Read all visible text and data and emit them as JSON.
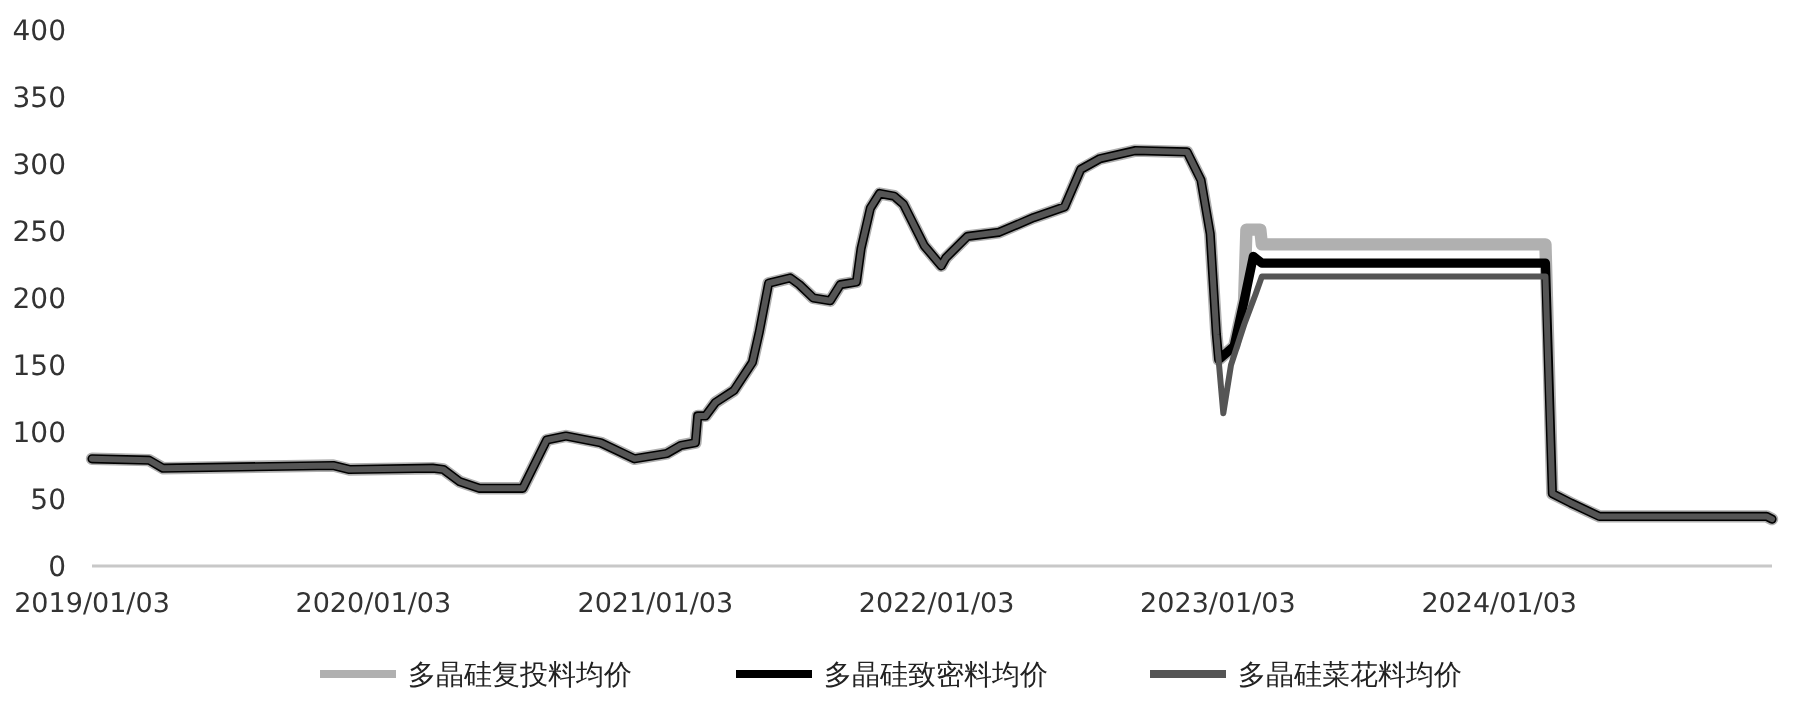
{
  "chart_data": {
    "type": "line",
    "xlim": [
      "2019-01-03",
      "2024-12-22"
    ],
    "xticks": [
      {
        "value": "2019-01-03",
        "label": "2019/01/03"
      },
      {
        "value": "2020-01-03",
        "label": "2020/01/03"
      },
      {
        "value": "2021-01-03",
        "label": "2021/01/03"
      },
      {
        "value": "2022-01-03",
        "label": "2022/01/03"
      },
      {
        "value": "2023-01-03",
        "label": "2023/01/03"
      },
      {
        "value": "2024-01-03",
        "label": "2024/01/03"
      }
    ],
    "ylim": [
      0,
      400
    ],
    "yticks": [
      0,
      50,
      100,
      150,
      200,
      250,
      300,
      350,
      400
    ],
    "grid": false,
    "legend": "bottom",
    "marker": "none",
    "line_style": "solid",
    "series": [
      {
        "name": "多晶硅复投料均价",
        "color": "#b0b0b0",
        "x": [
          "2019-01-03",
          "2019-03-18",
          "2019-04-05",
          "2019-11-12",
          "2019-12-03",
          "2020-03-20",
          "2020-04-03",
          "2020-04-24",
          "2020-05-20",
          "2020-07-15",
          "2020-08-15",
          "2020-09-09",
          "2020-10-24",
          "2020-12-07",
          "2021-01-18",
          "2021-02-05",
          "2021-02-24",
          "2021-02-27",
          "2021-03-09",
          "2021-03-22",
          "2021-04-15",
          "2021-05-09",
          "2021-05-18",
          "2021-05-30",
          "2021-06-27",
          "2021-07-09",
          "2021-07-27",
          "2021-08-18",
          "2021-08-31",
          "2021-09-21",
          "2021-09-27",
          "2021-10-09",
          "2021-10-21",
          "2021-11-09",
          "2021-11-21",
          "2021-12-18",
          "2022-01-09",
          "2022-01-15",
          "2022-02-12",
          "2022-03-25",
          "2022-05-09",
          "2022-06-18",
          "2022-07-09",
          "2022-08-03",
          "2022-09-18",
          "2022-11-24",
          "2022-12-12",
          "2022-12-24",
          "2023-01-01",
          "2023-01-04",
          "2023-01-24",
          "2023-02-06",
          "2023-02-09",
          "2023-02-27",
          "2023-03-01",
          "2024-03-03",
          "2024-03-12",
          "2024-04-05",
          "2024-05-12",
          "2024-12-15",
          "2024-12-22"
        ],
        "values": [
          80,
          79,
          73,
          75,
          72,
          73,
          72,
          63,
          58,
          58,
          94,
          97,
          92,
          80,
          84,
          90,
          92,
          112,
          112,
          122,
          131,
          152,
          175,
          211,
          215,
          210,
          200,
          198,
          210,
          212,
          237,
          267,
          278,
          276,
          270,
          239,
          224,
          230,
          246,
          249,
          260,
          268,
          296,
          304,
          310,
          309,
          288,
          248,
          173,
          154,
          164,
          198,
          251,
          251,
          240,
          240,
          54,
          47,
          37,
          37,
          35
        ]
      },
      {
        "name": "多晶硅致密料均价",
        "color": "#000000",
        "x": [
          "2019-01-03",
          "2019-03-18",
          "2019-04-05",
          "2019-11-12",
          "2019-12-03",
          "2020-03-20",
          "2020-04-03",
          "2020-04-24",
          "2020-05-20",
          "2020-07-15",
          "2020-08-15",
          "2020-09-09",
          "2020-10-24",
          "2020-12-07",
          "2021-01-18",
          "2021-02-05",
          "2021-02-24",
          "2021-02-27",
          "2021-03-09",
          "2021-03-22",
          "2021-04-15",
          "2021-05-09",
          "2021-05-18",
          "2021-05-30",
          "2021-06-27",
          "2021-07-09",
          "2021-07-27",
          "2021-08-18",
          "2021-08-31",
          "2021-09-21",
          "2021-09-27",
          "2021-10-09",
          "2021-10-21",
          "2021-11-09",
          "2021-11-21",
          "2021-12-18",
          "2022-01-09",
          "2022-01-15",
          "2022-02-12",
          "2022-03-25",
          "2022-05-09",
          "2022-06-18",
          "2022-07-09",
          "2022-08-03",
          "2022-09-18",
          "2022-11-24",
          "2022-12-12",
          "2022-12-24",
          "2023-01-01",
          "2023-01-04",
          "2023-01-24",
          "2023-02-06",
          "2023-02-18",
          "2023-03-01",
          "2024-03-03",
          "2024-03-12",
          "2024-04-05",
          "2024-05-12",
          "2024-12-15",
          "2024-12-22"
        ],
        "values": [
          80,
          79,
          73,
          75,
          72,
          73,
          72,
          63,
          58,
          58,
          94,
          97,
          92,
          80,
          84,
          90,
          92,
          112,
          112,
          122,
          131,
          152,
          175,
          211,
          215,
          210,
          200,
          198,
          210,
          212,
          237,
          267,
          278,
          276,
          270,
          239,
          224,
          230,
          246,
          249,
          260,
          268,
          296,
          304,
          310,
          309,
          288,
          248,
          173,
          154,
          164,
          198,
          231,
          226,
          226,
          54,
          47,
          37,
          37,
          35
        ]
      },
      {
        "name": "多晶硅菜花料均价",
        "color": "#555555",
        "x": [
          "2019-01-03",
          "2019-03-18",
          "2019-04-05",
          "2019-11-12",
          "2019-12-03",
          "2020-03-20",
          "2020-04-03",
          "2020-04-24",
          "2020-05-20",
          "2020-07-15",
          "2020-08-15",
          "2020-09-09",
          "2020-10-24",
          "2020-12-07",
          "2021-01-18",
          "2021-02-05",
          "2021-02-24",
          "2021-02-27",
          "2021-03-09",
          "2021-03-22",
          "2021-04-15",
          "2021-05-09",
          "2021-05-18",
          "2021-05-30",
          "2021-06-27",
          "2021-07-09",
          "2021-07-27",
          "2021-08-18",
          "2021-08-31",
          "2021-09-21",
          "2021-09-27",
          "2021-10-09",
          "2021-10-21",
          "2021-11-09",
          "2021-11-21",
          "2021-12-18",
          "2022-01-09",
          "2022-01-15",
          "2022-02-12",
          "2022-03-25",
          "2022-05-09",
          "2022-06-18",
          "2022-07-09",
          "2022-08-03",
          "2022-09-18",
          "2022-11-24",
          "2022-12-12",
          "2022-12-24",
          "2023-01-01",
          "2023-01-10",
          "2023-01-20",
          "2023-02-06",
          "2023-02-21",
          "2023-03-01",
          "2024-03-03",
          "2024-03-12",
          "2024-04-05",
          "2024-05-12",
          "2024-12-15",
          "2024-12-22"
        ],
        "values": [
          80,
          79,
          73,
          75,
          72,
          73,
          72,
          63,
          58,
          58,
          94,
          97,
          92,
          80,
          84,
          90,
          92,
          112,
          112,
          122,
          131,
          152,
          175,
          211,
          215,
          210,
          200,
          198,
          210,
          212,
          237,
          267,
          278,
          276,
          270,
          239,
          224,
          230,
          246,
          249,
          260,
          268,
          296,
          304,
          310,
          309,
          288,
          248,
          173,
          114,
          150,
          180,
          203,
          216,
          216,
          54,
          47,
          37,
          37,
          35
        ]
      }
    ]
  }
}
